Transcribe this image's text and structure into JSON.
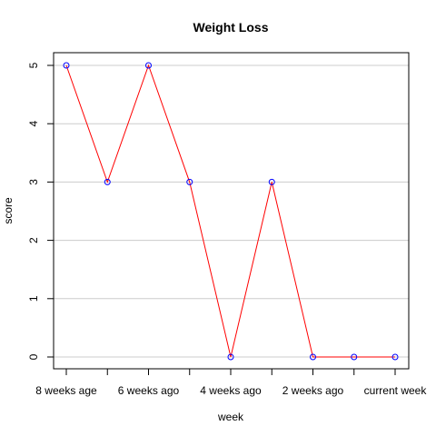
{
  "chart_data": {
    "type": "line",
    "title": "Weight Loss",
    "xlabel": "week",
    "ylabel": "score",
    "x_tick_labels": [
      "8 weeks age",
      "6 weeks ago",
      "4 weeks ago",
      "2 weeks ago",
      "current week"
    ],
    "x": [
      1,
      2,
      3,
      4,
      5,
      6,
      7,
      8,
      9
    ],
    "series": [
      {
        "values": [
          5,
          3,
          5,
          3,
          0,
          3,
          0,
          0,
          0
        ]
      }
    ],
    "ylim": [
      0,
      5
    ],
    "y_ticks": [
      0,
      1,
      2,
      3,
      4,
      5
    ],
    "grid": "horizontal",
    "line_color": "#ff0000",
    "marker_color": "#0000ff"
  }
}
